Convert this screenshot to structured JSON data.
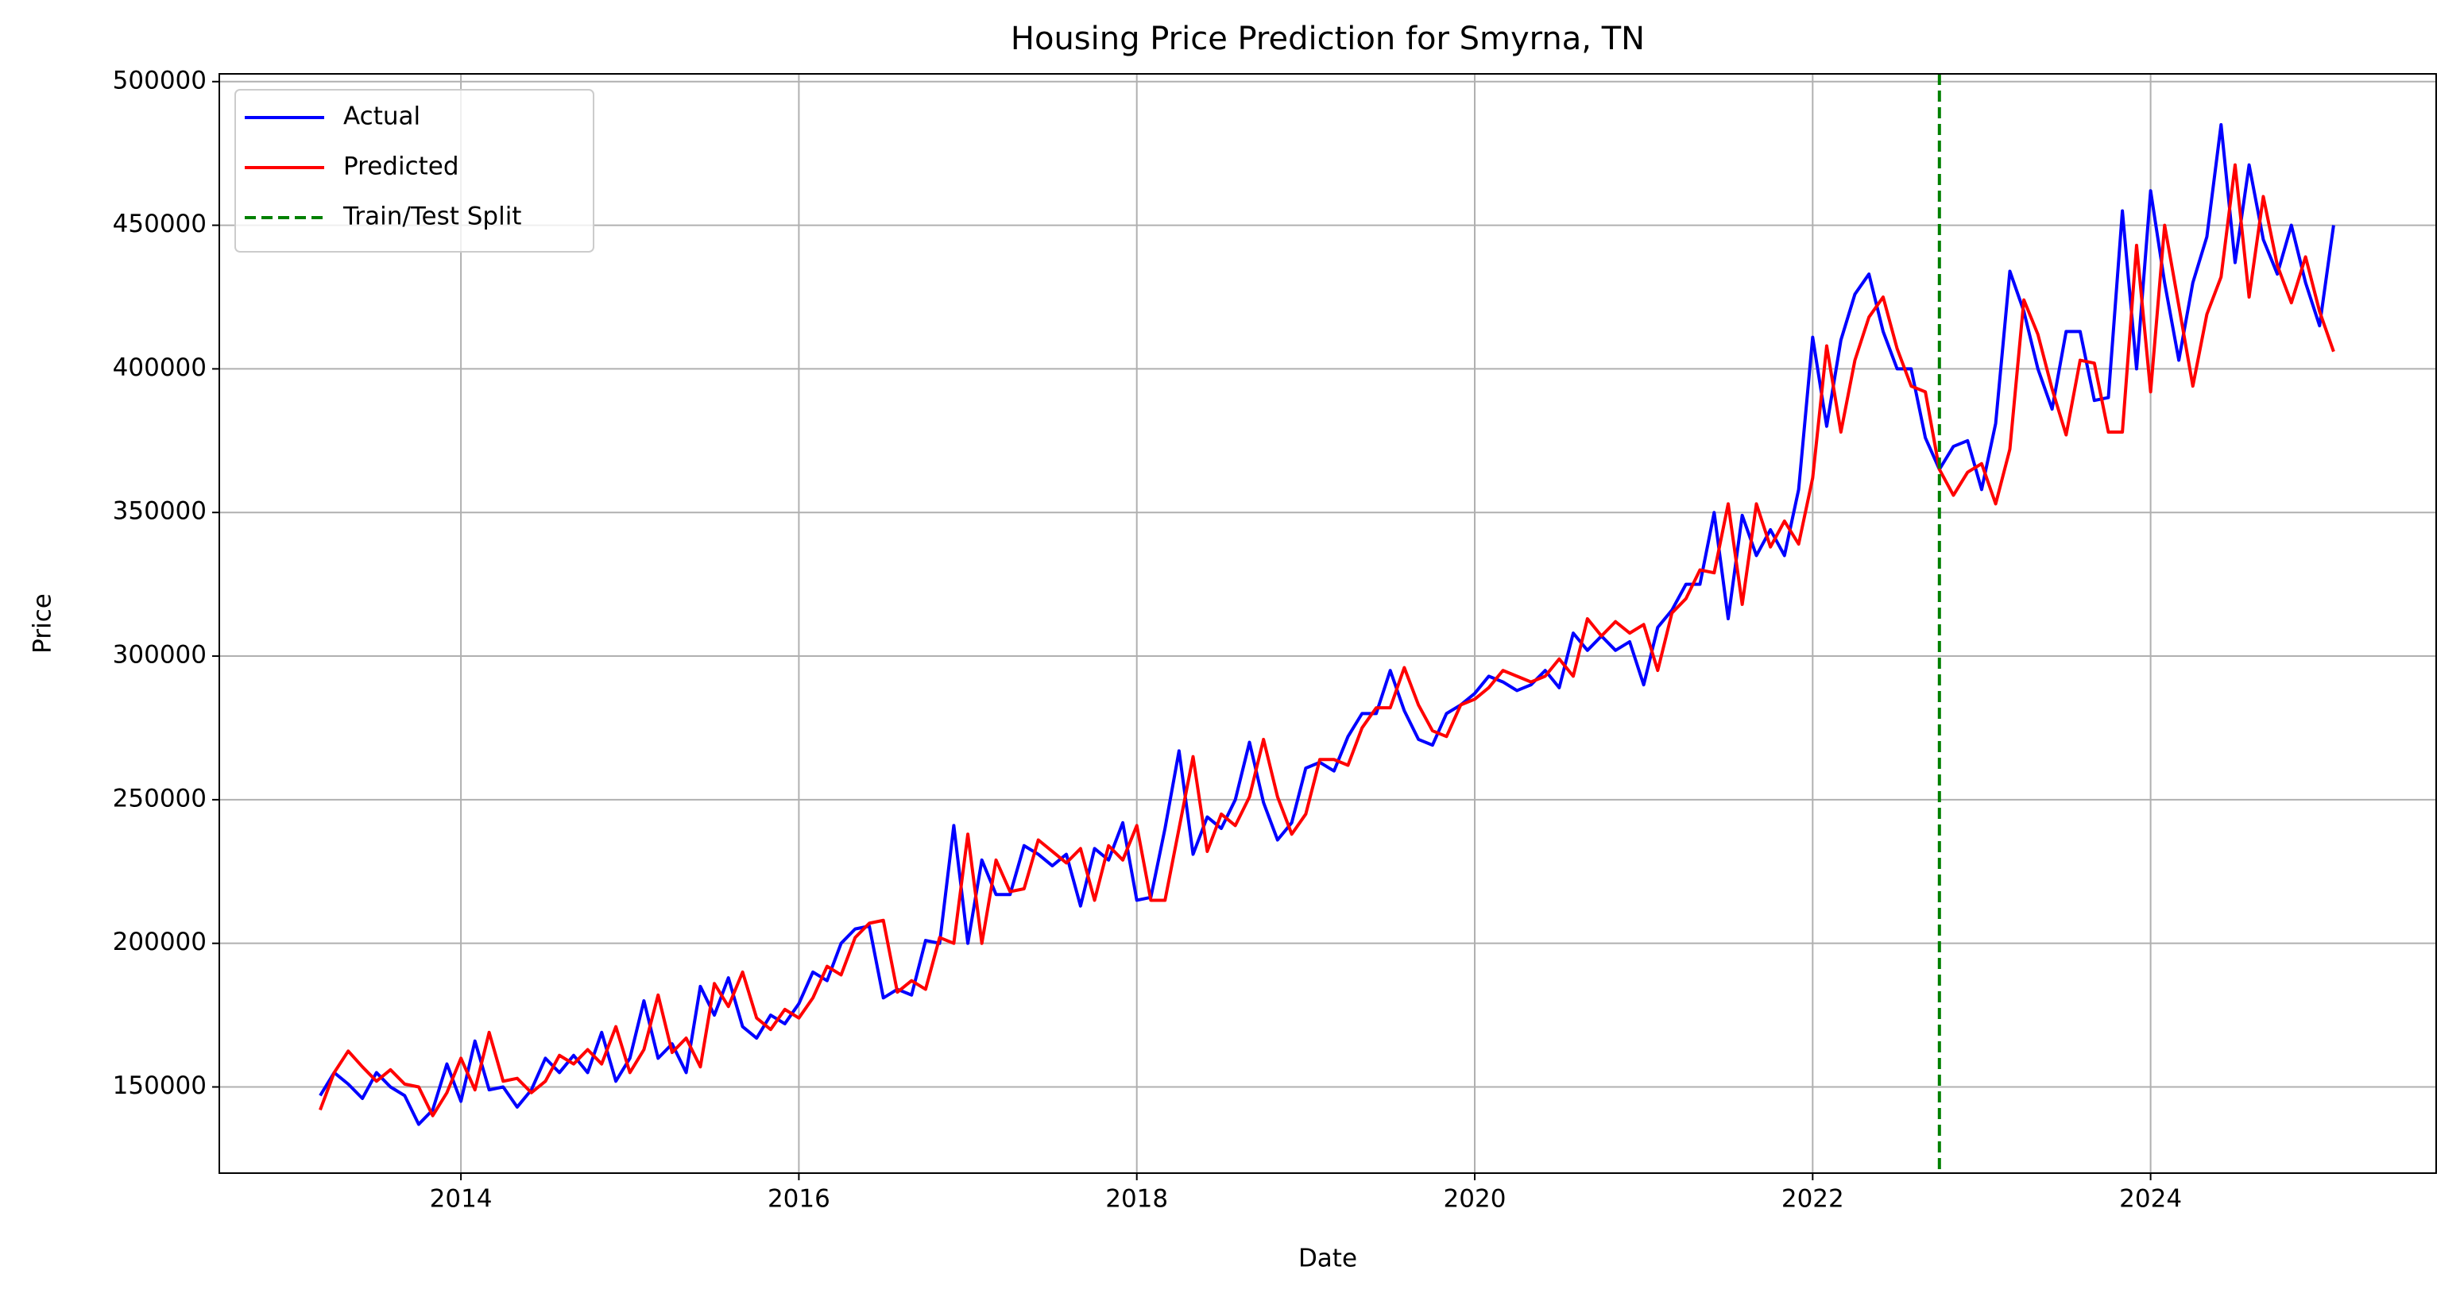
{
  "chart_data": {
    "type": "line",
    "title": "Housing Price Prediction for Smyrna, TN",
    "xlabel": "Date",
    "ylabel": "Price",
    "x": [
      2013.167,
      2013.25,
      2013.333,
      2013.417,
      2013.5,
      2013.583,
      2013.667,
      2013.75,
      2013.833,
      2013.917,
      2014.0,
      2014.083,
      2014.167,
      2014.25,
      2014.333,
      2014.417,
      2014.5,
      2014.583,
      2014.667,
      2014.75,
      2014.833,
      2014.917,
      2015.0,
      2015.083,
      2015.167,
      2015.25,
      2015.333,
      2015.417,
      2015.5,
      2015.583,
      2015.667,
      2015.75,
      2015.833,
      2015.917,
      2016.0,
      2016.083,
      2016.167,
      2016.25,
      2016.333,
      2016.417,
      2016.5,
      2016.583,
      2016.667,
      2016.75,
      2016.833,
      2016.917,
      2017.0,
      2017.083,
      2017.167,
      2017.25,
      2017.333,
      2017.417,
      2017.5,
      2017.583,
      2017.667,
      2017.75,
      2017.833,
      2017.917,
      2018.0,
      2018.083,
      2018.167,
      2018.25,
      2018.333,
      2018.417,
      2018.5,
      2018.583,
      2018.667,
      2018.75,
      2018.833,
      2018.917,
      2019.0,
      2019.083,
      2019.167,
      2019.25,
      2019.333,
      2019.417,
      2019.5,
      2019.583,
      2019.667,
      2019.75,
      2019.833,
      2019.917,
      2020.0,
      2020.083,
      2020.167,
      2020.25,
      2020.333,
      2020.417,
      2020.5,
      2020.583,
      2020.667,
      2020.75,
      2020.833,
      2020.917,
      2021.0,
      2021.083,
      2021.167,
      2021.25,
      2021.333,
      2021.417,
      2021.5,
      2021.583,
      2021.667,
      2021.75,
      2021.833,
      2021.917,
      2022.0,
      2022.083,
      2022.167,
      2022.25,
      2022.333,
      2022.417,
      2022.5,
      2022.583,
      2022.667,
      2022.75,
      2022.833,
      2022.917,
      2023.0,
      2023.083,
      2023.167,
      2023.25,
      2023.333,
      2023.417,
      2023.5,
      2023.583,
      2023.667,
      2023.75,
      2023.833,
      2023.917,
      2024.0,
      2024.083,
      2024.167,
      2024.25,
      2024.333,
      2024.417,
      2024.5,
      2024.583,
      2024.667,
      2024.75,
      2024.833,
      2024.917,
      2025.0,
      2025.083
    ],
    "series": [
      {
        "name": "Actual",
        "color": "#0000ff",
        "values": [
          147000,
          155000,
          151000,
          146000,
          155000,
          150000,
          147000,
          137000,
          142000,
          158000,
          145000,
          166000,
          149000,
          150000,
          143000,
          149000,
          160000,
          155000,
          161000,
          155000,
          169000,
          152000,
          160000,
          180000,
          160000,
          165000,
          155000,
          185000,
          175000,
          188000,
          171000,
          167000,
          175000,
          172000,
          179000,
          190000,
          187000,
          200000,
          205000,
          206000,
          181000,
          184000,
          182000,
          201000,
          200000,
          241000,
          200000,
          229000,
          217000,
          217000,
          234000,
          231000,
          227000,
          231000,
          213000,
          233000,
          229000,
          242000,
          215000,
          216000,
          240000,
          267000,
          231000,
          244000,
          240000,
          250000,
          270000,
          249000,
          236000,
          242000,
          261000,
          263000,
          260000,
          272000,
          280000,
          280000,
          295000,
          281000,
          271000,
          269000,
          280000,
          283000,
          287000,
          293000,
          291000,
          288000,
          290000,
          295000,
          289000,
          308000,
          302000,
          307000,
          302000,
          305000,
          290000,
          310000,
          316000,
          325000,
          325000,
          350000,
          313000,
          349000,
          335000,
          344000,
          335000,
          358000,
          411000,
          380000,
          410000,
          426000,
          433000,
          413000,
          400000,
          400000,
          376000,
          365000,
          373000,
          375000,
          358000,
          381000,
          434000,
          420000,
          400000,
          386000,
          413000,
          413000,
          389000,
          390000,
          455000,
          400000,
          462000,
          430000,
          403000,
          430000,
          446000,
          485000,
          437000,
          471000,
          445000,
          433000,
          450000,
          430000,
          415000,
          450000
        ]
      },
      {
        "name": "Predicted",
        "color": "#ff0000",
        "values": [
          142000,
          155000,
          162500,
          157000,
          152000,
          156000,
          151000,
          150000,
          140000,
          148000,
          160000,
          149000,
          169000,
          152000,
          153000,
          148000,
          152000,
          161000,
          158000,
          163000,
          158000,
          171000,
          155000,
          163000,
          182000,
          162000,
          167000,
          157000,
          186000,
          178000,
          190000,
          174000,
          170000,
          177000,
          174000,
          181000,
          192000,
          189000,
          202000,
          207000,
          208000,
          183000,
          187000,
          184000,
          202000,
          200000,
          238000,
          200000,
          229000,
          218000,
          219000,
          236000,
          232000,
          228000,
          233000,
          215000,
          234000,
          229000,
          241000,
          215000,
          215000,
          240000,
          265000,
          232000,
          245000,
          241000,
          251000,
          271000,
          251000,
          238000,
          245000,
          264000,
          264000,
          262000,
          275000,
          282000,
          282000,
          296000,
          283000,
          274000,
          272000,
          283000,
          285000,
          289000,
          295000,
          293000,
          291000,
          293000,
          299000,
          293000,
          313000,
          307000,
          312000,
          308000,
          311000,
          295000,
          315000,
          320000,
          330000,
          329000,
          353000,
          318000,
          353000,
          338000,
          347000,
          339000,
          362000,
          408000,
          378000,
          403000,
          418000,
          425000,
          407000,
          394000,
          392000,
          365000,
          356000,
          364000,
          367000,
          353000,
          372000,
          424000,
          412000,
          393000,
          377000,
          403000,
          402000,
          378000,
          378000,
          443000,
          392000,
          450000,
          422000,
          394000,
          419000,
          432000,
          471000,
          425000,
          460000,
          436000,
          423000,
          439000,
          420000,
          406000
        ]
      }
    ],
    "vlines": [
      {
        "name": "Train/Test Split",
        "x": 2022.75,
        "color": "#008000",
        "dashed": true
      }
    ],
    "xlim": [
      2012.57,
      2025.69
    ],
    "xticks": [
      2014,
      2016,
      2018,
      2020,
      2022,
      2024
    ],
    "ylim": [
      120000,
      502700
    ],
    "yticks": [
      150000,
      200000,
      250000,
      300000,
      350000,
      400000,
      450000,
      500000
    ],
    "grid": true,
    "legend": "upper-left"
  }
}
